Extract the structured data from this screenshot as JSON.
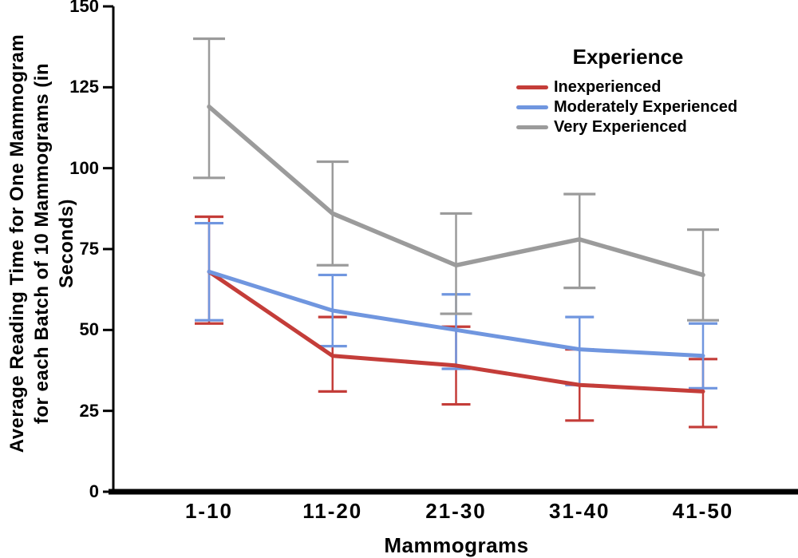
{
  "chart_data": {
    "type": "line",
    "title": "",
    "xlabel": "Mammograms",
    "ylabel": "Average Reading Time for One Mammogram for each Batch of 10 Mammograms (in Seconds)",
    "ylabel_lines": [
      "Average Reading Time for One Mammogram",
      "for each Batch of 10 Mammograms (in",
      "Seconds)"
    ],
    "categories": [
      "1-10",
      "11-20",
      "21-30",
      "31-40",
      "41-50"
    ],
    "y_ticks": [
      0,
      25,
      50,
      75,
      100,
      125,
      150
    ],
    "ylim": [
      0,
      150
    ],
    "grid": false,
    "axis_color": "#000000",
    "background": "#ffffff",
    "legend": {
      "title": "Experience",
      "position": "top-right"
    },
    "series": [
      {
        "name": "Inexperienced",
        "color": "#C43D39",
        "means": [
          68,
          42,
          39,
          33,
          31
        ],
        "upper": [
          85,
          54,
          51,
          44,
          41
        ],
        "lower": [
          52,
          31,
          27,
          22,
          20
        ],
        "line_width": 5,
        "cap_halfwidth": 18
      },
      {
        "name": "Moderately Experienced",
        "color": "#7096DF",
        "means": [
          68,
          56,
          50,
          44,
          42
        ],
        "upper": [
          83,
          67,
          61,
          54,
          52
        ],
        "lower": [
          53,
          45,
          38,
          33,
          32
        ],
        "line_width": 5,
        "cap_halfwidth": 18
      },
      {
        "name": "Very Experienced",
        "color": "#9B9B9B",
        "means": [
          119,
          86,
          70,
          78,
          67
        ],
        "upper": [
          140,
          102,
          86,
          92,
          81
        ],
        "lower": [
          97,
          70,
          55,
          63,
          53
        ],
        "line_width": 5.5,
        "cap_halfwidth": 20
      }
    ]
  }
}
